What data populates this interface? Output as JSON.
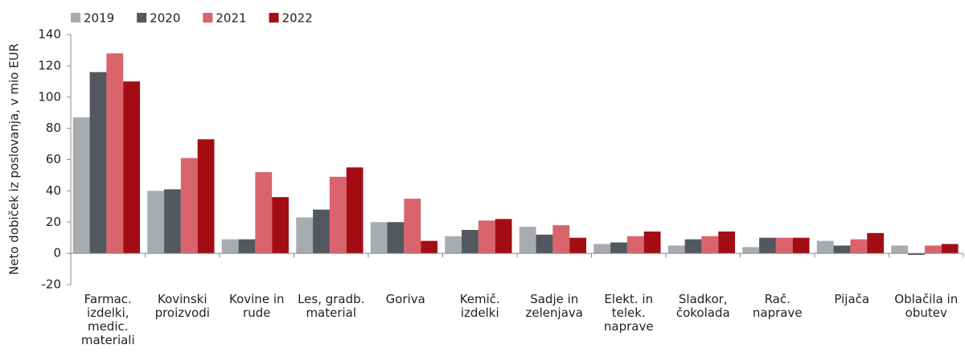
{
  "chart_data": {
    "type": "bar",
    "y_label": "Neto dobiček iz poslovanja, v mio EUR",
    "categories": [
      [
        "Farmac.",
        "izdelki,",
        "medic.",
        "materiali"
      ],
      [
        "Kovinski",
        "proizvodi"
      ],
      [
        "Kovine in",
        "rude"
      ],
      [
        "Les, gradb.",
        "material"
      ],
      [
        "Goriva"
      ],
      [
        "Kemič.",
        "izdelki"
      ],
      [
        "Sadje in",
        "zelenjava"
      ],
      [
        "Elekt. in",
        "telek.",
        "naprave"
      ],
      [
        "Sladkor,",
        "čokolada"
      ],
      [
        "Rač.",
        "naprave"
      ],
      [
        "Pijača"
      ],
      [
        "Oblačila in",
        "obutev"
      ]
    ],
    "series": [
      {
        "name": "2019",
        "color": "#a7aaae",
        "values": [
          87,
          40,
          9,
          23,
          20,
          11,
          17,
          6,
          5,
          4,
          8,
          5
        ]
      },
      {
        "name": "2020",
        "color": "#53575e",
        "values": [
          116,
          41,
          9,
          28,
          20,
          15,
          12,
          7,
          9,
          10,
          5,
          -1
        ]
      },
      {
        "name": "2021",
        "color": "#d9646b",
        "values": [
          128,
          61,
          52,
          49,
          35,
          21,
          18,
          11,
          11,
          10,
          9,
          5
        ]
      },
      {
        "name": "2022",
        "color": "#a50d14",
        "values": [
          110,
          73,
          36,
          55,
          8,
          22,
          10,
          14,
          14,
          10,
          13,
          6
        ]
      }
    ],
    "ylim": [
      -20,
      140
    ],
    "yticks": [
      -20,
      0,
      20,
      40,
      60,
      80,
      100,
      120,
      140
    ],
    "grid": false,
    "legend": "top"
  }
}
